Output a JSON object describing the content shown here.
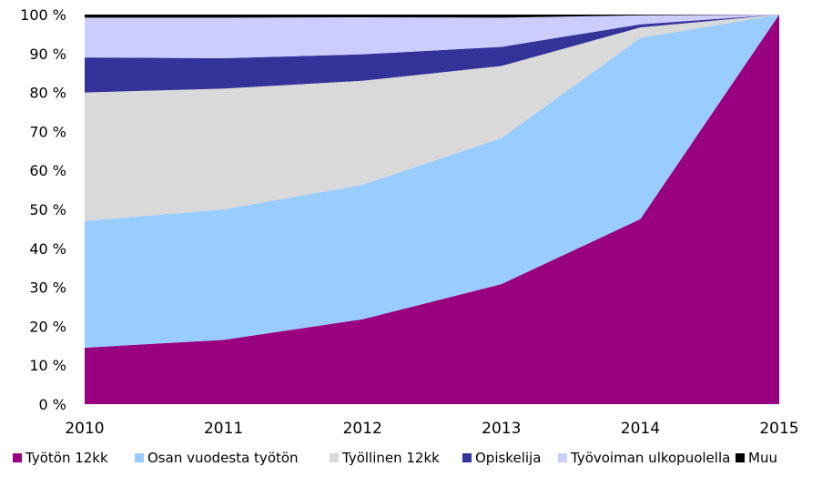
{
  "chart_data": {
    "type": "area",
    "stacked": true,
    "normalized_percent": true,
    "categories": [
      "2010",
      "2011",
      "2012",
      "2013",
      "2014",
      "2015"
    ],
    "series": [
      {
        "name": "Työtön 12kk",
        "color": "#990080",
        "values": [
          14.5,
          16.5,
          21.8,
          30.8,
          47.5,
          100
        ]
      },
      {
        "name": "Osan vuodesta työtön",
        "color": "#99ccff",
        "values": [
          32.5,
          33.5,
          34.5,
          37.5,
          46.5,
          0
        ]
      },
      {
        "name": "Työllinen 12kk",
        "color": "#d9d9d9",
        "values": [
          33.0,
          31.0,
          26.7,
          18.5,
          2.7,
          0
        ]
      },
      {
        "name": "Opiskelija",
        "color": "#333399",
        "values": [
          9.0,
          7.8,
          6.8,
          4.9,
          0.8,
          0
        ]
      },
      {
        "name": "Työvoiman ulkopuolella",
        "color": "#ccccff",
        "values": [
          10.2,
          10.4,
          9.5,
          7.5,
          2.3,
          0
        ]
      },
      {
        "name": "Muu",
        "color": "#000000",
        "values": [
          0.8,
          0.8,
          0.7,
          0.8,
          0.2,
          0
        ]
      }
    ],
    "y_ticks": [
      "0 %",
      "10 %",
      "20 %",
      "30 %",
      "40 %",
      "50 %",
      "60 %",
      "70 %",
      "80 %",
      "90 %",
      "100 %"
    ],
    "ylim": [
      0,
      100
    ],
    "grid": false,
    "legend_position": "bottom",
    "title": "",
    "xlabel": "",
    "ylabel": ""
  }
}
